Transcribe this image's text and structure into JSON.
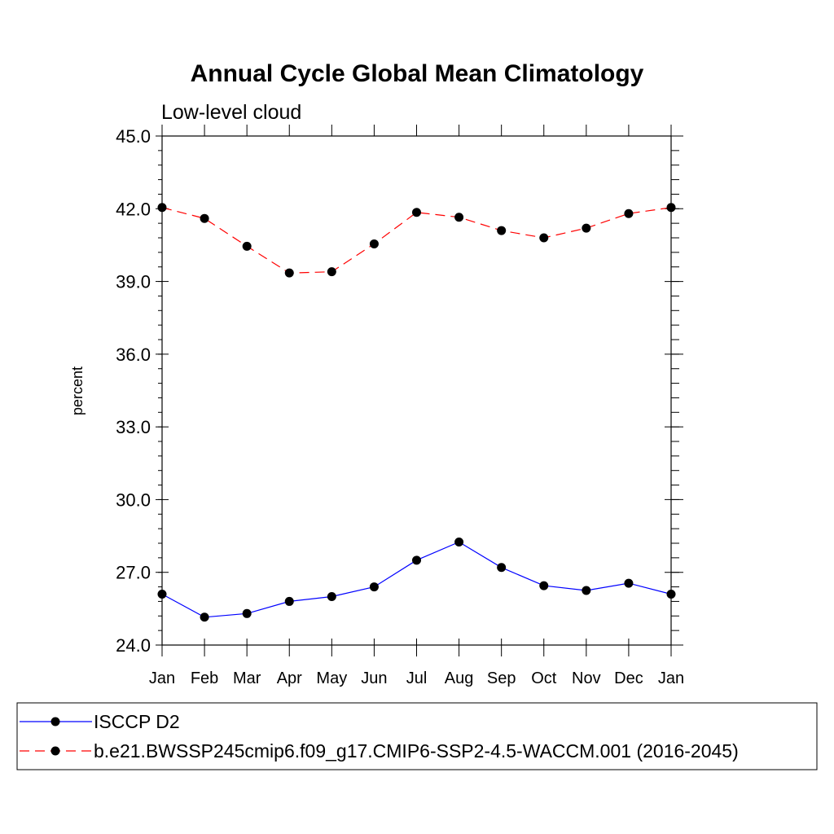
{
  "chart_data": {
    "type": "line",
    "title": "Annual Cycle Global Mean Climatology",
    "subtitle": "Low-level cloud",
    "xlabel": "",
    "ylabel": "percent",
    "categories": [
      "Jan",
      "Feb",
      "Mar",
      "Apr",
      "May",
      "Jun",
      "Jul",
      "Aug",
      "Sep",
      "Oct",
      "Nov",
      "Dec",
      "Jan"
    ],
    "ylim": [
      24.0,
      45.0
    ],
    "yticks": [
      "24.0",
      "27.0",
      "30.0",
      "33.0",
      "36.0",
      "39.0",
      "42.0",
      "45.0"
    ],
    "grid": false,
    "legend_position": "bottom",
    "series": [
      {
        "name": "ISCCP D2",
        "color": "#0000ff",
        "dash": "solid",
        "marker": "circle",
        "values": [
          26.1,
          25.15,
          25.3,
          25.8,
          26.0,
          26.4,
          27.5,
          28.25,
          27.2,
          26.45,
          26.25,
          26.55,
          26.1
        ]
      },
      {
        "name": "b.e21.BWSSP245cmip6.f09_g17.CMIP6-SSP2-4.5-WACCM.001 (2016-2045)",
        "color": "#ff0000",
        "dash": "dashed",
        "marker": "circle",
        "values": [
          42.05,
          41.6,
          40.45,
          39.35,
          39.4,
          40.55,
          41.85,
          41.65,
          41.1,
          40.8,
          41.2,
          41.8,
          42.05
        ]
      }
    ]
  }
}
